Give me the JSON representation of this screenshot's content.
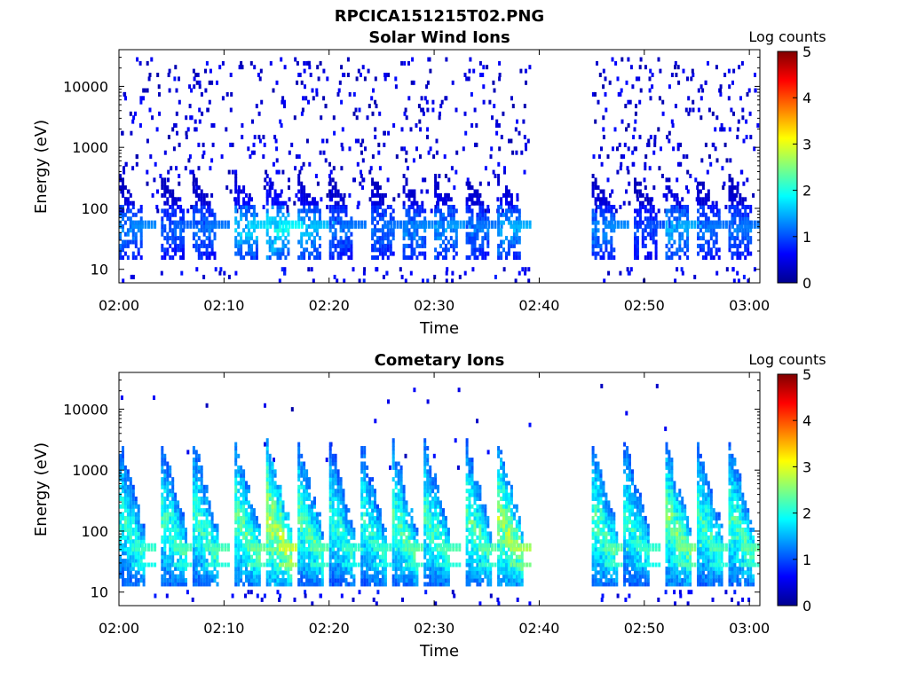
{
  "figure": {
    "title": "RPCICA151215T02.PNG"
  },
  "chart_data": [
    {
      "type": "heatmap",
      "title": "Solar Wind Ions",
      "xlabel": "Time",
      "ylabel": "Energy (eV)",
      "xticks": [
        "02:00",
        "02:10",
        "02:20",
        "02:30",
        "02:40",
        "02:50",
        "03:00"
      ],
      "xlim": [
        "02:00",
        "03:01"
      ],
      "yscale": "log",
      "ylim": [
        6,
        40000
      ],
      "yticks": [
        "10",
        "100",
        "1000",
        "10000"
      ],
      "colorbar": {
        "label": "Log counts",
        "ticks": [
          "0",
          "1",
          "2",
          "3",
          "4",
          "5"
        ],
        "range": [
          0,
          5
        ],
        "colormap": "jet"
      },
      "data_gap": [
        "02:39",
        "02:45"
      ],
      "bursts": [
        {
          "t": "02:01",
          "peak_log_counts": 1.4
        },
        {
          "t": "02:05",
          "peak_log_counts": 1.2
        },
        {
          "t": "02:08",
          "peak_log_counts": 1.3
        },
        {
          "t": "02:12",
          "peak_log_counts": 1.8
        },
        {
          "t": "02:15",
          "peak_log_counts": 2.0
        },
        {
          "t": "02:18",
          "peak_log_counts": 1.7
        },
        {
          "t": "02:21",
          "peak_log_counts": 1.3
        },
        {
          "t": "02:25",
          "peak_log_counts": 1.3
        },
        {
          "t": "02:28",
          "peak_log_counts": 1.4
        },
        {
          "t": "02:31",
          "peak_log_counts": 1.5
        },
        {
          "t": "02:34",
          "peak_log_counts": 1.3
        },
        {
          "t": "02:37",
          "peak_log_counts": 1.6
        },
        {
          "t": "02:46",
          "peak_log_counts": 1.4
        },
        {
          "t": "02:50",
          "peak_log_counts": 1.1
        },
        {
          "t": "02:53",
          "peak_log_counts": 1.6
        },
        {
          "t": "02:56",
          "peak_log_counts": 1.3
        },
        {
          "t": "02:59",
          "peak_log_counts": 1.3
        }
      ]
    },
    {
      "type": "heatmap",
      "title": "Cometary Ions",
      "xlabel": "Time",
      "ylabel": "Energy (eV)",
      "xticks": [
        "02:00",
        "02:10",
        "02:20",
        "02:30",
        "02:40",
        "02:50",
        "03:00"
      ],
      "xlim": [
        "02:00",
        "03:01"
      ],
      "yscale": "log",
      "ylim": [
        6,
        40000
      ],
      "yticks": [
        "10",
        "100",
        "1000",
        "10000"
      ],
      "colorbar": {
        "label": "Log counts",
        "ticks": [
          "0",
          "1",
          "2",
          "3",
          "4",
          "5"
        ],
        "range": [
          0,
          5
        ],
        "colormap": "jet"
      },
      "data_gap": [
        "02:39",
        "02:45"
      ],
      "bursts": [
        {
          "t": "02:01",
          "peak_log_counts": 2.3
        },
        {
          "t": "02:05",
          "peak_log_counts": 2.4
        },
        {
          "t": "02:08",
          "peak_log_counts": 2.4
        },
        {
          "t": "02:12",
          "peak_log_counts": 2.6
        },
        {
          "t": "02:15",
          "peak_log_counts": 3.1
        },
        {
          "t": "02:18",
          "peak_log_counts": 2.5
        },
        {
          "t": "02:21",
          "peak_log_counts": 2.3
        },
        {
          "t": "02:24",
          "peak_log_counts": 2.3
        },
        {
          "t": "02:27",
          "peak_log_counts": 2.5
        },
        {
          "t": "02:30",
          "peak_log_counts": 2.4
        },
        {
          "t": "02:34",
          "peak_log_counts": 2.5
        },
        {
          "t": "02:37",
          "peak_log_counts": 2.9
        },
        {
          "t": "02:46",
          "peak_log_counts": 2.5
        },
        {
          "t": "02:49",
          "peak_log_counts": 2.3
        },
        {
          "t": "02:53",
          "peak_log_counts": 2.7
        },
        {
          "t": "02:56",
          "peak_log_counts": 2.4
        },
        {
          "t": "02:59",
          "peak_log_counts": 2.5
        }
      ]
    }
  ]
}
